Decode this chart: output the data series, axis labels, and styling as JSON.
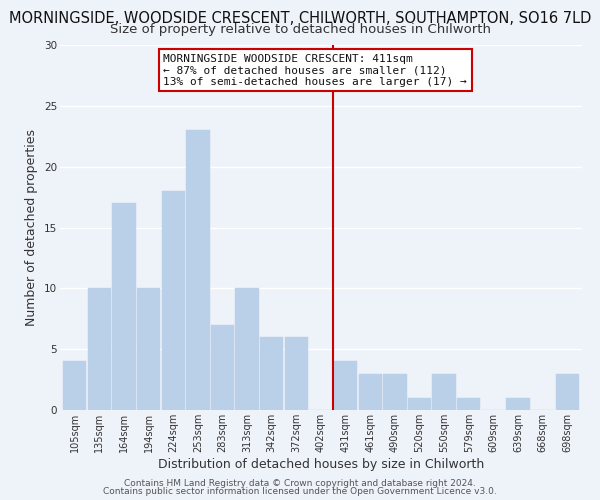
{
  "title_line1": "MORNINGSIDE, WOODSIDE CRESCENT, CHILWORTH, SOUTHAMPTON, SO16 7LD",
  "title_line2": "Size of property relative to detached houses in Chilworth",
  "xlabel": "Distribution of detached houses by size in Chilworth",
  "ylabel": "Number of detached properties",
  "bar_labels": [
    "105sqm",
    "135sqm",
    "164sqm",
    "194sqm",
    "224sqm",
    "253sqm",
    "283sqm",
    "313sqm",
    "342sqm",
    "372sqm",
    "402sqm",
    "431sqm",
    "461sqm",
    "490sqm",
    "520sqm",
    "550sqm",
    "579sqm",
    "609sqm",
    "639sqm",
    "668sqm",
    "698sqm"
  ],
  "bar_heights": [
    4,
    10,
    17,
    10,
    18,
    23,
    7,
    10,
    6,
    6,
    0,
    4,
    3,
    3,
    1,
    3,
    1,
    0,
    1,
    0,
    3
  ],
  "bar_color": "#bad0e8",
  "bar_edge_color": "#bad0e8",
  "vline_x": 10.5,
  "vline_color": "#cc0000",
  "annotation_title": "MORNINGSIDE WOODSIDE CRESCENT: 411sqm",
  "annotation_line1": "← 87% of detached houses are smaller (112)",
  "annotation_line2": "13% of semi-detached houses are larger (17) →",
  "annotation_box_color": "#ffffff",
  "annotation_box_edge": "#cc0000",
  "ylim": [
    0,
    30
  ],
  "yticks": [
    0,
    5,
    10,
    15,
    20,
    25,
    30
  ],
  "footer1": "Contains HM Land Registry data © Crown copyright and database right 2024.",
  "footer2": "Contains public sector information licensed under the Open Government Licence v3.0.",
  "background_color": "#eef2f9",
  "grid_color": "#ffffff",
  "title_fontsize": 10.5,
  "subtitle_fontsize": 9.5,
  "axis_label_fontsize": 9,
  "tick_fontsize": 7,
  "annotation_fontsize": 8,
  "footer_fontsize": 6.5
}
